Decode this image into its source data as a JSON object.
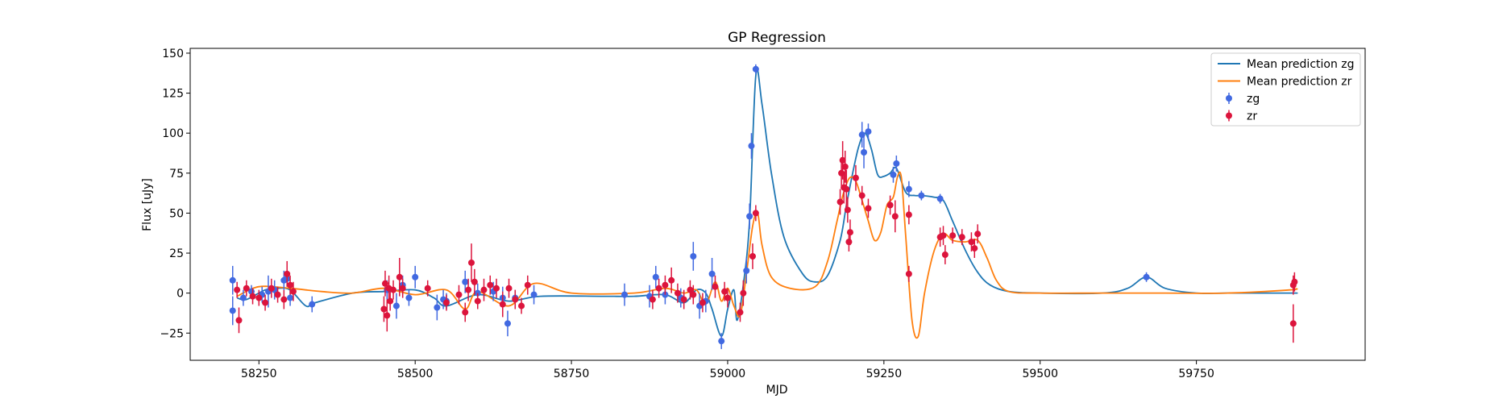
{
  "chart_data": {
    "type": "scatter",
    "title": "GP Regression",
    "xlabel": "MJD",
    "ylabel": "Flux [uJy]",
    "xlim": [
      58140,
      60020
    ],
    "ylim": [
      -42,
      153
    ],
    "xticks": [
      58250,
      58500,
      58750,
      59000,
      59250,
      59500,
      59750
    ],
    "yticks": [
      -25,
      0,
      25,
      50,
      75,
      100,
      125,
      150
    ],
    "grid": false,
    "legend_position": "top-right",
    "legend": [
      {
        "label": "Mean prediction zg",
        "kind": "line",
        "color": "#1f77b4"
      },
      {
        "label": "Mean prediction zr",
        "kind": "line",
        "color": "#ff7f0e"
      },
      {
        "label": "zg",
        "kind": "errorbar",
        "color": "#4169e1"
      },
      {
        "label": "zr",
        "kind": "errorbar",
        "color": "#dc143c"
      }
    ],
    "series": [
      {
        "name": "zg",
        "kind": "errorbar",
        "color": "#4169e1",
        "points": [
          [
            58208,
            8,
            9
          ],
          [
            58208,
            -11,
            9
          ],
          [
            58225,
            -3,
            5
          ],
          [
            58238,
            1,
            4
          ],
          [
            58255,
            -1,
            5
          ],
          [
            58265,
            1,
            10
          ],
          [
            58275,
            2,
            6
          ],
          [
            58290,
            8,
            6
          ],
          [
            58295,
            9,
            5
          ],
          [
            58300,
            -3,
            5
          ],
          [
            58335,
            -7,
            5
          ],
          [
            58455,
            2,
            6
          ],
          [
            58470,
            -8,
            8
          ],
          [
            58480,
            5,
            6
          ],
          [
            58490,
            -3,
            5
          ],
          [
            58500,
            10,
            7
          ],
          [
            58535,
            -9,
            8
          ],
          [
            58545,
            -4,
            6
          ],
          [
            58550,
            -5,
            5
          ],
          [
            58580,
            7,
            7
          ],
          [
            58600,
            0,
            6
          ],
          [
            58625,
            1,
            6
          ],
          [
            58640,
            -3,
            7
          ],
          [
            58648,
            -19,
            8
          ],
          [
            58660,
            -3,
            5
          ],
          [
            58690,
            -1,
            6
          ],
          [
            58835,
            -1,
            7
          ],
          [
            58875,
            -2,
            7
          ],
          [
            58885,
            10,
            7
          ],
          [
            58900,
            -1,
            6
          ],
          [
            58925,
            -3,
            6
          ],
          [
            58945,
            23,
            9
          ],
          [
            58955,
            -8,
            8
          ],
          [
            58965,
            -5,
            7
          ],
          [
            58975,
            12,
            10
          ],
          [
            58990,
            -30,
            5
          ],
          [
            59030,
            14,
            8
          ],
          [
            59035,
            48,
            8
          ],
          [
            59038,
            92,
            8
          ],
          [
            59045,
            140,
            3
          ],
          [
            59215,
            99,
            8
          ],
          [
            59218,
            88,
            10
          ],
          [
            59225,
            101,
            5
          ],
          [
            59265,
            74,
            5
          ],
          [
            59270,
            81,
            5
          ],
          [
            59290,
            65,
            5
          ],
          [
            59310,
            61,
            3
          ],
          [
            59340,
            59,
            3
          ],
          [
            59670,
            10,
            3
          ]
        ]
      },
      {
        "name": "zr",
        "kind": "errorbar",
        "color": "#dc143c",
        "points": [
          [
            58215,
            2,
            5
          ],
          [
            58218,
            -17,
            8
          ],
          [
            58230,
            3,
            5
          ],
          [
            58240,
            -2,
            5
          ],
          [
            58250,
            -3,
            5
          ],
          [
            58260,
            -6,
            5
          ],
          [
            58270,
            3,
            6
          ],
          [
            58280,
            -1,
            5
          ],
          [
            58290,
            -4,
            6
          ],
          [
            58295,
            12,
            8
          ],
          [
            58300,
            5,
            6
          ],
          [
            58305,
            1,
            6
          ],
          [
            58450,
            -10,
            8
          ],
          [
            58452,
            6,
            8
          ],
          [
            58455,
            -14,
            10
          ],
          [
            58458,
            3,
            8
          ],
          [
            58460,
            -5,
            6
          ],
          [
            58465,
            2,
            6
          ],
          [
            58475,
            10,
            12
          ],
          [
            58480,
            3,
            6
          ],
          [
            58520,
            3,
            5
          ],
          [
            58550,
            -6,
            5
          ],
          [
            58570,
            -1,
            6
          ],
          [
            58580,
            -12,
            6
          ],
          [
            58585,
            2,
            7
          ],
          [
            58590,
            19,
            12
          ],
          [
            58595,
            7,
            8
          ],
          [
            58600,
            -5,
            5
          ],
          [
            58610,
            2,
            7
          ],
          [
            58620,
            5,
            6
          ],
          [
            58630,
            3,
            6
          ],
          [
            58640,
            -7,
            8
          ],
          [
            58650,
            3,
            6
          ],
          [
            58660,
            -4,
            6
          ],
          [
            58670,
            -8,
            5
          ],
          [
            58680,
            5,
            6
          ],
          [
            58880,
            -4,
            6
          ],
          [
            58890,
            3,
            6
          ],
          [
            58900,
            5,
            6
          ],
          [
            58910,
            8,
            8
          ],
          [
            58920,
            0,
            6
          ],
          [
            58930,
            -4,
            6
          ],
          [
            58940,
            2,
            6
          ],
          [
            58945,
            -1,
            6
          ],
          [
            58960,
            -6,
            6
          ],
          [
            58980,
            4,
            7
          ],
          [
            58995,
            1,
            6
          ],
          [
            59000,
            -3,
            6
          ],
          [
            59020,
            -12,
            6
          ],
          [
            59025,
            0,
            8
          ],
          [
            59040,
            23,
            8
          ],
          [
            59045,
            50,
            5
          ],
          [
            59180,
            57,
            8
          ],
          [
            59182,
            75,
            10
          ],
          [
            59184,
            83,
            12
          ],
          [
            59186,
            66,
            10
          ],
          [
            59188,
            79,
            10
          ],
          [
            59190,
            65,
            12
          ],
          [
            59192,
            52,
            8
          ],
          [
            59194,
            32,
            6
          ],
          [
            59196,
            38,
            8
          ],
          [
            59205,
            72,
            8
          ],
          [
            59215,
            61,
            6
          ],
          [
            59225,
            53,
            6
          ],
          [
            59260,
            55,
            6
          ],
          [
            59268,
            48,
            10
          ],
          [
            59290,
            12,
            5
          ],
          [
            59290,
            49,
            6
          ],
          [
            59340,
            35,
            6
          ],
          [
            59345,
            36,
            6
          ],
          [
            59348,
            24,
            6
          ],
          [
            59360,
            36,
            5
          ],
          [
            59375,
            35,
            5
          ],
          [
            59390,
            32,
            6
          ],
          [
            59395,
            28,
            6
          ],
          [
            59400,
            37,
            6
          ],
          [
            59905,
            -19,
            12
          ],
          [
            59905,
            5,
            6
          ],
          [
            59907,
            7,
            6
          ]
        ]
      },
      {
        "name": "Mean prediction zg",
        "kind": "line",
        "color": "#1f77b4",
        "x": [
          58215,
          58230,
          58260,
          58280,
          58300,
          58325,
          58340,
          58400,
          58450,
          58500,
          58530,
          58550,
          58600,
          58650,
          58700,
          58800,
          58850,
          58900,
          58930,
          58950,
          58965,
          58975,
          58990,
          59000,
          59010,
          59015,
          59025,
          59035,
          59045,
          59055,
          59070,
          59090,
          59120,
          59140,
          59160,
          59180,
          59190,
          59200,
          59210,
          59220,
          59230,
          59240,
          59250,
          59260,
          59270,
          59285,
          59300,
          59310,
          59330,
          59345,
          59360,
          59380,
          59400,
          59420,
          59450,
          59500,
          59600,
          59640,
          59670,
          59700,
          59750,
          59800,
          59900,
          59910
        ],
        "y": [
          -3,
          -4,
          2,
          3,
          2,
          -8,
          -6,
          0,
          1,
          2,
          -3,
          -8,
          -1,
          -5,
          -2,
          -2,
          -2,
          -1,
          -6,
          2,
          0,
          -10,
          -27,
          -10,
          2,
          -17,
          5,
          45,
          136,
          118,
          75,
          35,
          12,
          7,
          11,
          33,
          55,
          75,
          92,
          100,
          90,
          74,
          73,
          75,
          78,
          63,
          61,
          61,
          60,
          58,
          45,
          27,
          13,
          5,
          1,
          0,
          0,
          3,
          10,
          3,
          0,
          0,
          0,
          0
        ]
      },
      {
        "name": "Mean prediction zr",
        "kind": "line",
        "color": "#ff7f0e",
        "x": [
          58215,
          58250,
          58300,
          58350,
          58400,
          58450,
          58500,
          58550,
          58580,
          58600,
          58650,
          58690,
          58750,
          58850,
          58900,
          58930,
          58950,
          58965,
          58980,
          58990,
          59000,
          59010,
          59020,
          59030,
          59040,
          59048,
          59055,
          59070,
          59100,
          59140,
          59160,
          59175,
          59185,
          59195,
          59205,
          59215,
          59225,
          59235,
          59245,
          59255,
          59265,
          59272,
          59278,
          59285,
          59295,
          59305,
          59315,
          59330,
          59345,
          59360,
          59380,
          59400,
          59415,
          59430,
          59450,
          59500,
          59600,
          59700,
          59800,
          59900,
          59910
        ],
        "y": [
          -2,
          4,
          3,
          1,
          0,
          3,
          -1,
          2,
          -10,
          1,
          -8,
          6,
          0,
          0,
          3,
          0,
          2,
          -7,
          7,
          -5,
          3,
          -8,
          -14,
          12,
          42,
          50,
          30,
          10,
          3,
          4,
          20,
          45,
          62,
          72,
          70,
          58,
          45,
          33,
          38,
          55,
          60,
          73,
          72,
          35,
          -17,
          -27,
          0,
          26,
          37,
          33,
          32,
          33,
          22,
          8,
          1,
          0,
          0,
          0,
          0,
          2,
          3
        ]
      }
    ]
  }
}
